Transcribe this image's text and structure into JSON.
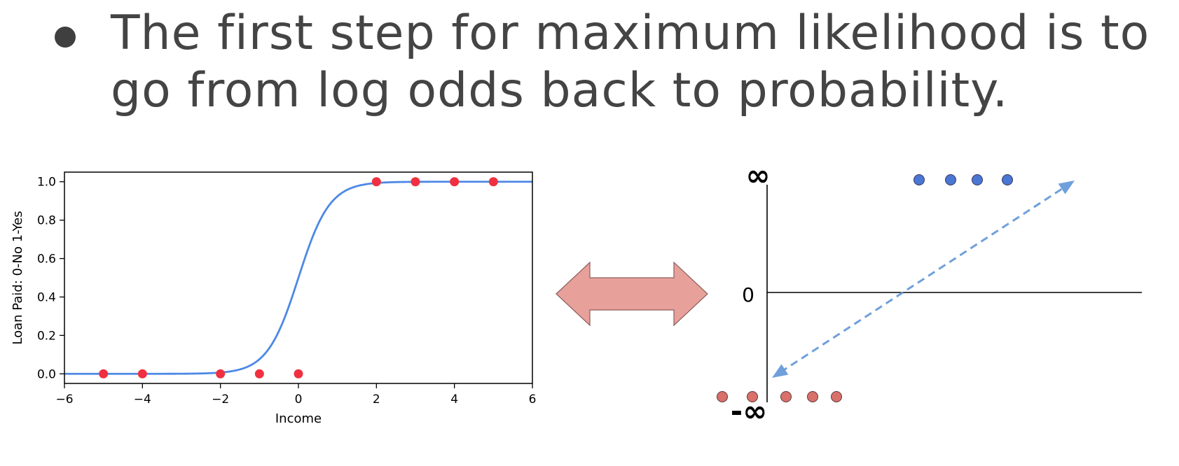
{
  "slide": {
    "bullet_line_1": "The first step for maximum likelihood is to",
    "bullet_line_2": "go from log odds back to probability."
  },
  "chart_data": [
    {
      "type": "scatter",
      "title": "",
      "xlabel": "Income",
      "ylabel": "Loan Paid: 0-No 1-Yes",
      "xlim": [
        -6,
        6
      ],
      "ylim": [
        -0.05,
        1.05
      ],
      "x_ticks": [
        -6,
        -4,
        -2,
        0,
        2,
        4,
        6
      ],
      "x_tick_labels": [
        "−6",
        "−4",
        "−2",
        "0",
        "2",
        "4",
        "6"
      ],
      "y_ticks": [
        0.0,
        0.2,
        0.4,
        0.6,
        0.8,
        1.0
      ],
      "y_tick_labels": [
        "0.0",
        "0.2",
        "0.4",
        "0.6",
        "0.8",
        "1.0"
      ],
      "points": {
        "x": [
          -5,
          -4,
          -2,
          -1,
          0,
          2,
          3,
          4,
          5
        ],
        "y": [
          0,
          0,
          0,
          0,
          0,
          1,
          1,
          1,
          1
        ],
        "color": "#f03040"
      },
      "curve": {
        "type": "logistic",
        "k": 2.5,
        "x0": 0,
        "color": "#4c88e5"
      },
      "grid": false
    },
    {
      "type": "scatter",
      "title": "",
      "y_tick_labels": [
        "∞",
        "0",
        "-∞"
      ],
      "top_points": {
        "count": 4,
        "color": "#4a76d4"
      },
      "bottom_points": {
        "count": 5,
        "color": "#d9706a"
      },
      "dashed_line_color": "#6fa0dc"
    }
  ],
  "center_arrow": {
    "color": "#e8a09a",
    "direction": "double-headed"
  },
  "colors": {
    "title_text": "#444444",
    "bullet": "#3f3f3f"
  }
}
